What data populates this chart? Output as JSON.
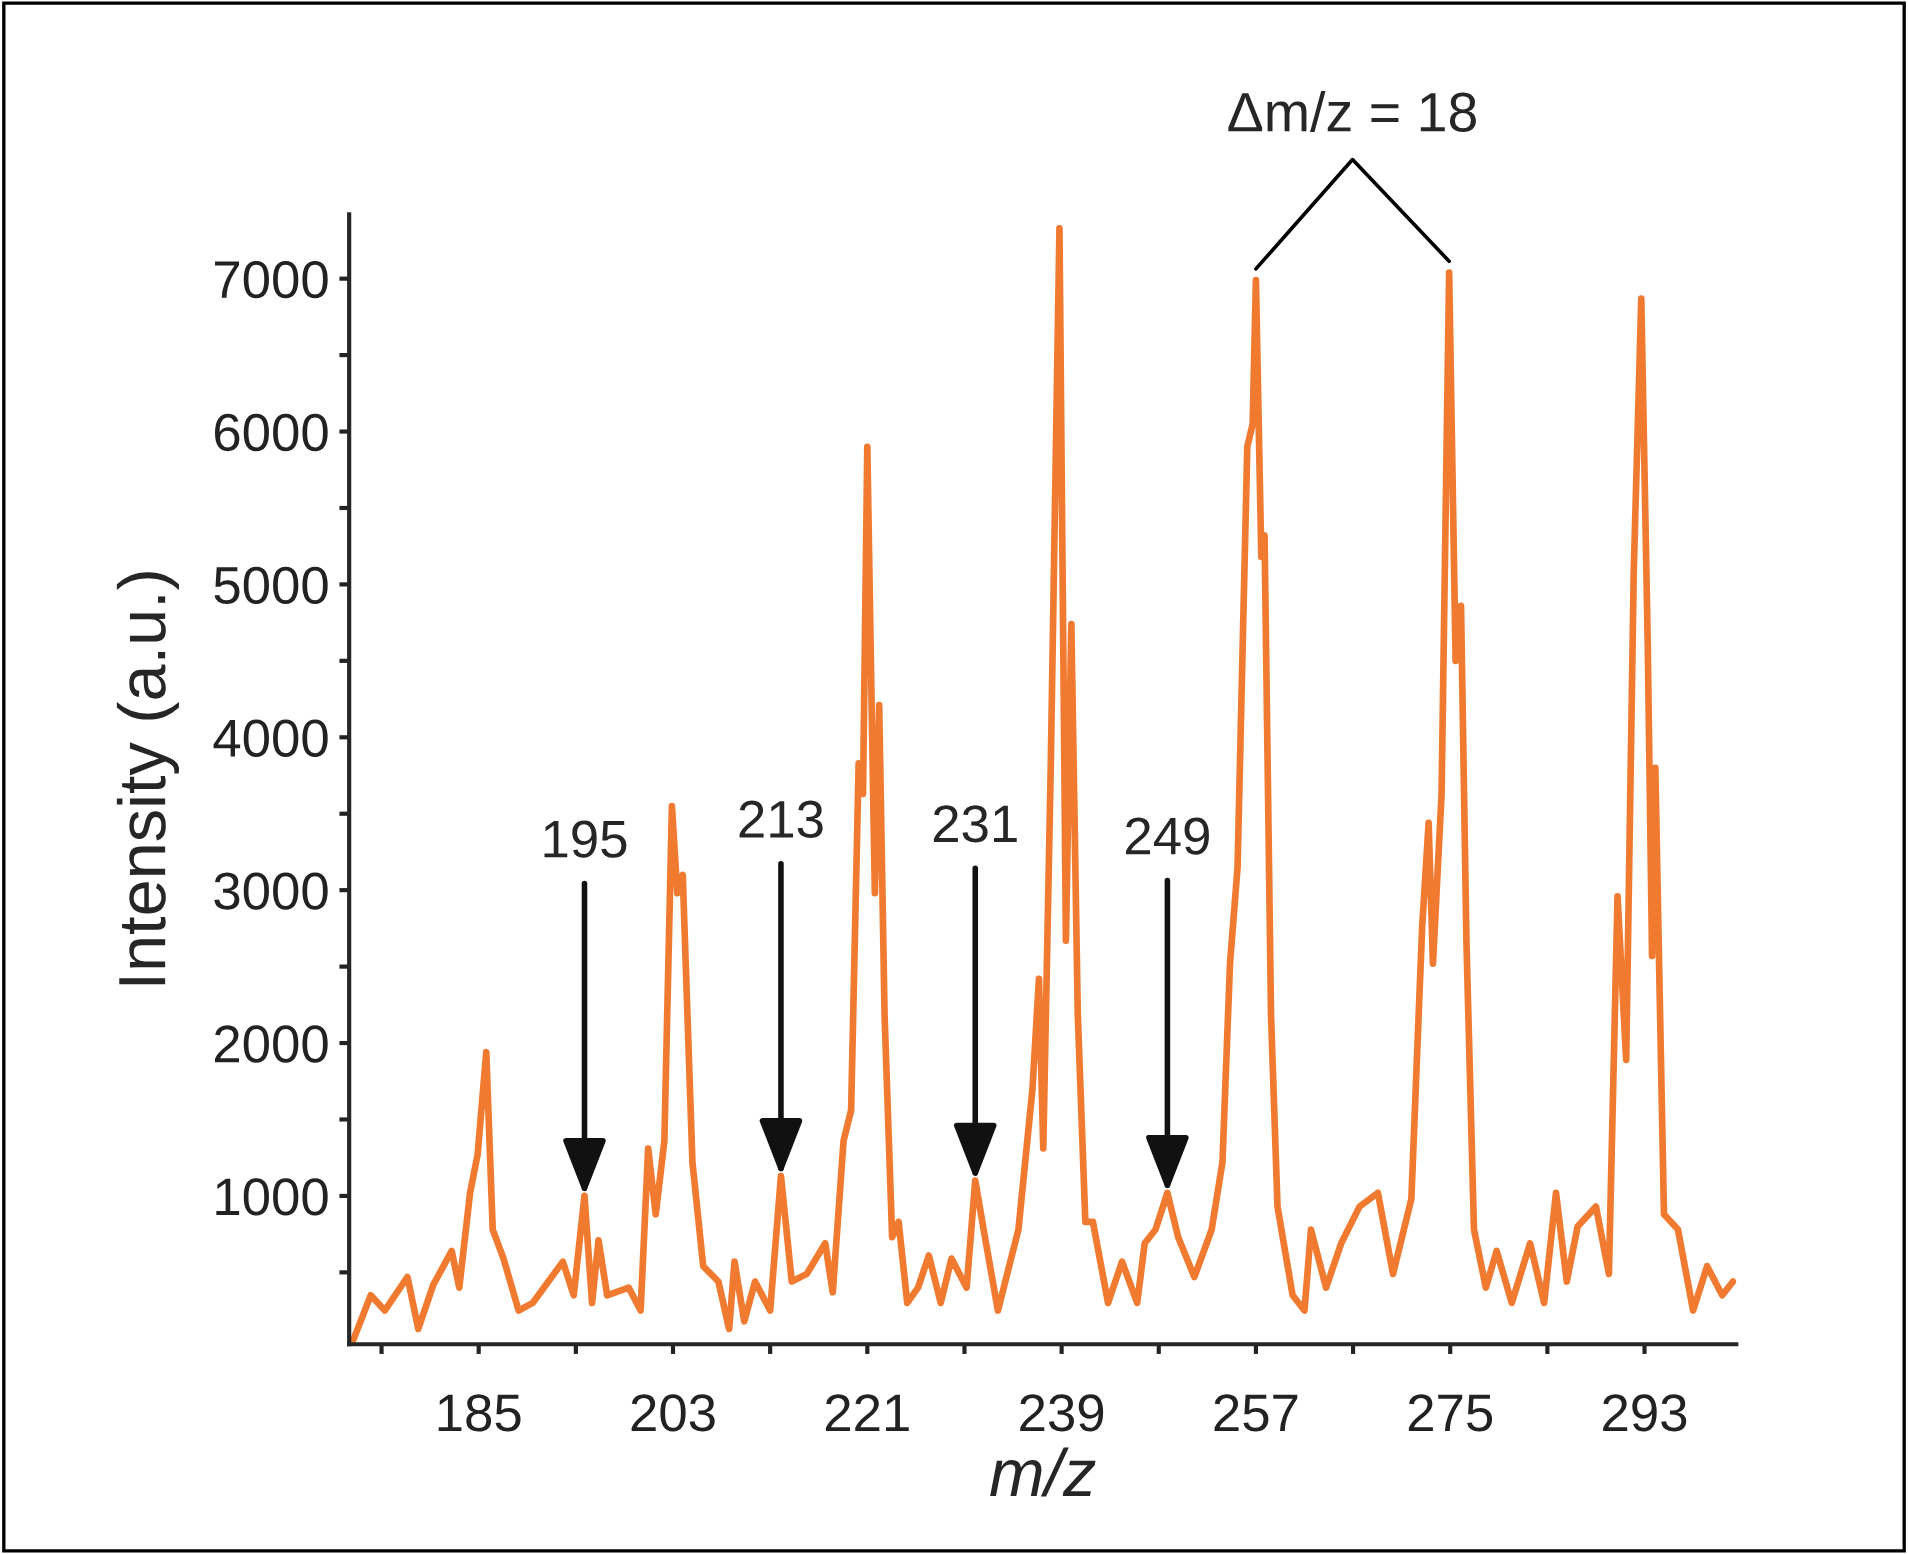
{
  "chart_data": {
    "type": "line",
    "xlabel": "m/z",
    "ylabel": "Intensity (a.u.)",
    "xlim": [
      173,
      301.5
    ],
    "ylim": [
      30,
      7420
    ],
    "xticks": [
      {
        "value": 176,
        "label": null
      },
      185,
      {
        "value": 194,
        "label": null
      },
      203,
      {
        "value": 212,
        "label": null
      },
      221,
      {
        "value": 230,
        "label": null
      },
      239,
      {
        "value": 248,
        "label": null
      },
      257,
      {
        "value": 266,
        "label": null
      },
      275,
      {
        "value": 284,
        "label": null
      },
      293
    ],
    "yticks": [
      {
        "value": 500,
        "label": null
      },
      1000,
      {
        "value": 1500,
        "label": null
      },
      2000,
      {
        "value": 2500,
        "label": null
      },
      3000,
      {
        "value": 3500,
        "label": null
      },
      4000,
      {
        "value": 4500,
        "label": null
      },
      5000,
      {
        "value": 5500,
        "label": null
      },
      6000,
      {
        "value": 6500,
        "label": null
      },
      7000
    ],
    "grid": false,
    "legend": false,
    "marker": "none",
    "line_style": "solid",
    "series": [
      {
        "color": "#f07a30",
        "x": [
          173.4,
          175.0,
          176.3,
          178.4,
          179.4,
          180.8,
          182.5,
          183.2,
          184.2,
          184.9,
          185.7,
          186.3,
          187.3,
          188.7,
          190.0,
          192.8,
          193.8,
          194.8,
          195.5,
          196.1,
          196.9,
          198.9,
          200.0,
          200.7,
          201.4,
          202.2,
          202.9,
          203.4,
          203.9,
          204.8,
          205.8,
          207.2,
          208.2,
          208.7,
          209.6,
          210.6,
          212.0,
          213.0,
          214.0,
          215.4,
          217.1,
          217.8,
          218.8,
          219.5,
          220.2,
          220.6,
          221.0,
          221.4,
          221.7,
          222.1,
          222.6,
          223.3,
          223.9,
          224.7,
          225.7,
          226.7,
          227.8,
          228.8,
          230.2,
          231.0,
          231.9,
          233.1,
          235.0,
          236.3,
          236.9,
          237.3,
          238.0,
          238.8,
          239.4,
          239.9,
          240.5,
          241.2,
          241.9,
          243.3,
          244.6,
          246.0,
          246.7,
          247.7,
          248.8,
          249.8,
          251.3,
          252.9,
          253.9,
          254.6,
          255.3,
          256.2,
          256.7,
          257.0,
          257.5,
          257.8,
          258.4,
          259.0,
          260.4,
          261.5,
          262.1,
          263.5,
          264.9,
          266.6,
          268.3,
          269.7,
          271.4,
          272.4,
          273.0,
          273.4,
          274.2,
          274.9,
          275.5,
          276.0,
          276.5,
          277.2,
          278.3,
          279.3,
          280.7,
          282.4,
          283.7,
          284.8,
          285.8,
          286.8,
          288.5,
          289.7,
          290.5,
          291.3,
          292.0,
          292.7,
          293.3,
          293.7,
          294.0,
          294.8,
          296.1,
          297.5,
          298.8,
          300.2,
          301.2
        ],
        "values": [
          60,
          350,
          250,
          470,
          130,
          420,
          640,
          400,
          1020,
          1270,
          1940,
          780,
          590,
          250,
          300,
          570,
          350,
          1000,
          300,
          710,
          350,
          400,
          250,
          1310,
          880,
          1360,
          3550,
          2980,
          3100,
          1220,
          540,
          440,
          130,
          570,
          180,
          440,
          250,
          1130,
          440,
          490,
          690,
          370,
          1360,
          1560,
          3830,
          3630,
          5900,
          4210,
          2980,
          4210,
          2180,
          730,
          830,
          300,
          400,
          610,
          300,
          590,
          400,
          1100,
          730,
          250,
          780,
          1700,
          2420,
          1310,
          3830,
          7330,
          2670,
          4740,
          2180,
          830,
          830,
          300,
          570,
          300,
          690,
          780,
          1020,
          730,
          470,
          780,
          1220,
          2520,
          3150,
          5900,
          6050,
          6990,
          5180,
          5320,
          2180,
          930,
          350,
          250,
          780,
          400,
          690,
          930,
          1020,
          490,
          980,
          2760,
          3440,
          2520,
          3630,
          7040,
          4500,
          4860,
          2670,
          780,
          400,
          640,
          300,
          690,
          300,
          1020,
          440,
          800,
          930,
          490,
          2960,
          1890,
          5080,
          6870,
          4600,
          2570,
          3800,
          880,
          780,
          250,
          540,
          350,
          440
        ]
      }
    ],
    "annotations": [
      {
        "text": "195",
        "x": 194.8,
        "y": 1000
      },
      {
        "text": "213",
        "x": 213.0,
        "y": 1130
      },
      {
        "text": "231",
        "x": 231.0,
        "y": 1100
      },
      {
        "text": "249",
        "x": 248.8,
        "y": 1020
      },
      {
        "text": "Δm/z = 18",
        "x": 257.0,
        "y": 6990
      }
    ]
  }
}
